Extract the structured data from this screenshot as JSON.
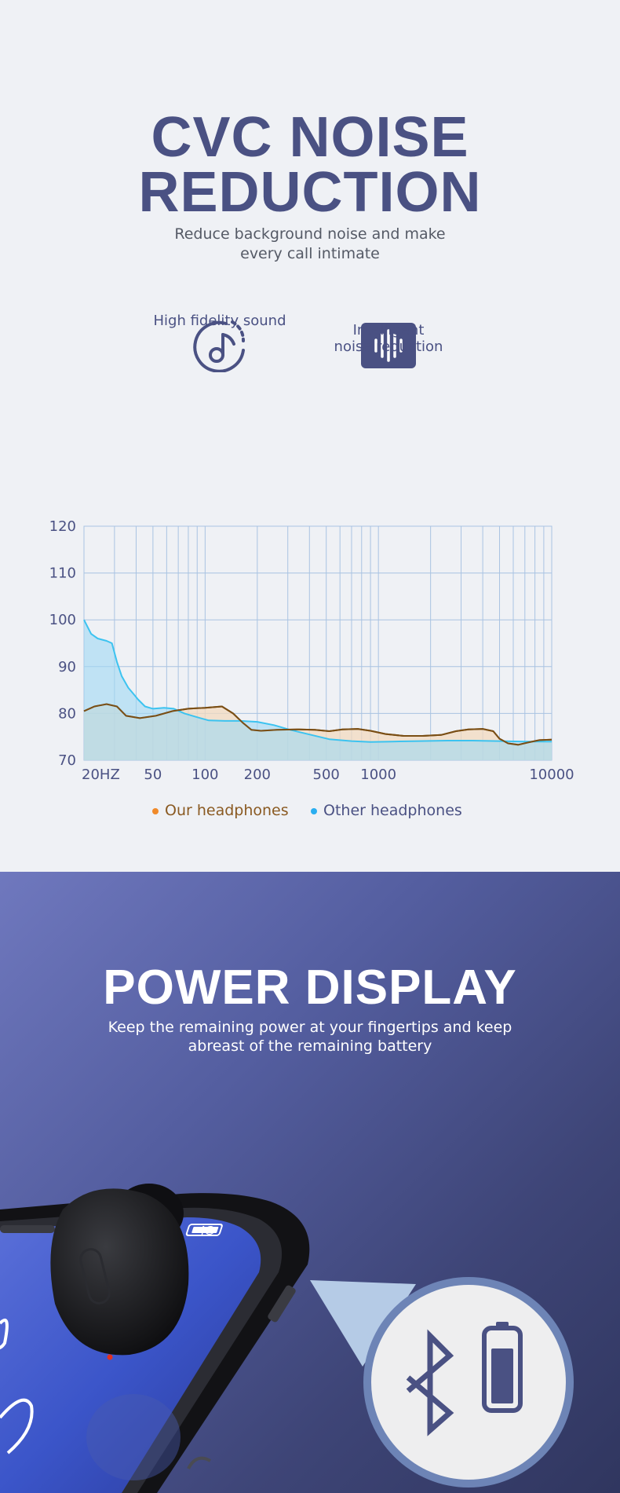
{
  "hero": {
    "title_line1": "CVC NOISE",
    "title_line2": "REDUCTION",
    "subtitle_line1": "Reduce background noise and make",
    "subtitle_line2": "every call intimate"
  },
  "features": [
    {
      "label_line1": "High fidelity sound",
      "label_line2": "",
      "icon": "music-note-icon"
    },
    {
      "label_line1": "Intelligent",
      "label_line2": "noise reduction",
      "icon": "sound-wave-icon"
    }
  ],
  "chart_data": {
    "type": "area",
    "x_scale": "log",
    "xlim": [
      20,
      10000
    ],
    "ylim": [
      70,
      120
    ],
    "yticks": [
      70,
      80,
      90,
      100,
      110,
      120
    ],
    "xticks": [
      {
        "value": 20,
        "label": "20HZ"
      },
      {
        "value": 50,
        "label": "50"
      },
      {
        "value": 100,
        "label": "100"
      },
      {
        "value": 200,
        "label": "200"
      },
      {
        "value": 500,
        "label": "500"
      },
      {
        "value": 1000,
        "label": "1000"
      },
      {
        "value": 10000,
        "label": "10000"
      }
    ],
    "grid": true,
    "legend_position": "bottom-center",
    "series": [
      {
        "name": "Our headphones",
        "color": "#7a4e14",
        "fill": "#f3d9bf",
        "points": [
          [
            20,
            80.5
          ],
          [
            23,
            81.5
          ],
          [
            27,
            82
          ],
          [
            31,
            81.5
          ],
          [
            35,
            79.5
          ],
          [
            42,
            79
          ],
          [
            52,
            79.5
          ],
          [
            65,
            80.5
          ],
          [
            80,
            81
          ],
          [
            100,
            81.2
          ],
          [
            125,
            81.5
          ],
          [
            145,
            80
          ],
          [
            165,
            78
          ],
          [
            185,
            76.5
          ],
          [
            210,
            76.3
          ],
          [
            260,
            76.5
          ],
          [
            340,
            76.6
          ],
          [
            430,
            76.5
          ],
          [
            520,
            76.2
          ],
          [
            620,
            76.6
          ],
          [
            760,
            76.7
          ],
          [
            900,
            76.3
          ],
          [
            1100,
            75.6
          ],
          [
            1400,
            75.2
          ],
          [
            1800,
            75.2
          ],
          [
            2300,
            75.4
          ],
          [
            2800,
            76.2
          ],
          [
            3300,
            76.6
          ],
          [
            4000,
            76.7
          ],
          [
            4600,
            76.2
          ],
          [
            5000,
            74.6
          ],
          [
            5600,
            73.6
          ],
          [
            6400,
            73.3
          ],
          [
            7300,
            73.8
          ],
          [
            8500,
            74.3
          ],
          [
            10000,
            74.4
          ]
        ]
      },
      {
        "name": "Other headphones",
        "color": "#3cc3f0",
        "fill": "#9ed9f4",
        "points": [
          [
            20,
            100
          ],
          [
            22,
            97
          ],
          [
            24,
            96
          ],
          [
            27,
            95.5
          ],
          [
            29,
            95
          ],
          [
            31,
            91
          ],
          [
            33,
            88
          ],
          [
            36,
            85.5
          ],
          [
            39,
            84
          ],
          [
            41,
            83
          ],
          [
            45,
            81.5
          ],
          [
            50,
            81
          ],
          [
            58,
            81.2
          ],
          [
            66,
            81
          ],
          [
            76,
            80
          ],
          [
            90,
            79.2
          ],
          [
            105,
            78.5
          ],
          [
            130,
            78.4
          ],
          [
            160,
            78.4
          ],
          [
            200,
            78.2
          ],
          [
            250,
            77.5
          ],
          [
            310,
            76.5
          ],
          [
            400,
            75.5
          ],
          [
            520,
            74.5
          ],
          [
            700,
            74.1
          ],
          [
            900,
            73.9
          ],
          [
            1200,
            74
          ],
          [
            1700,
            74.1
          ],
          [
            2500,
            74.2
          ],
          [
            3500,
            74.2
          ],
          [
            5000,
            74.1
          ],
          [
            7000,
            74
          ],
          [
            10000,
            74
          ]
        ]
      }
    ]
  },
  "power": {
    "title": "POWER DISPLAY",
    "subtitle_line1": "Keep the remaining power at your fingertips and keep",
    "subtitle_line2": "abreast of the remaining battery",
    "status_bar_text": "4G",
    "icons": [
      "bluetooth-icon",
      "battery-icon"
    ]
  }
}
